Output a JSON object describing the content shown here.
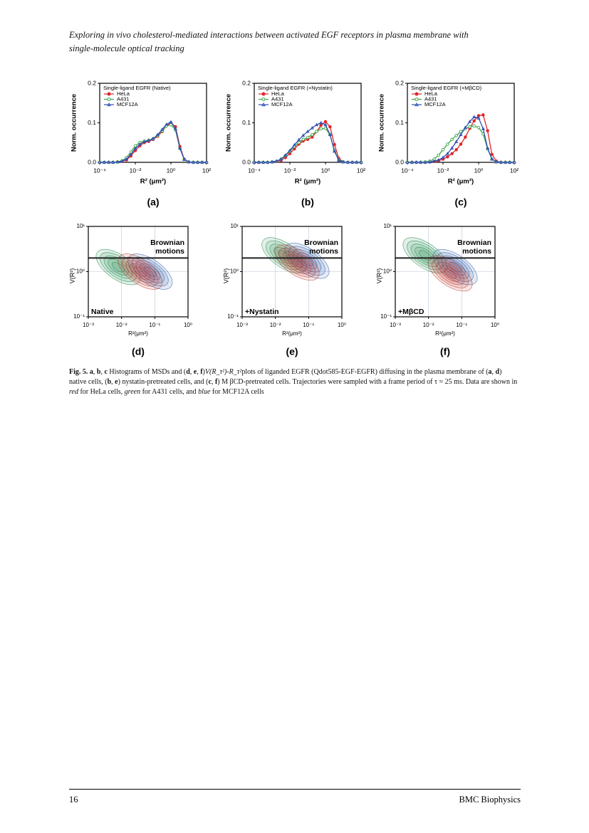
{
  "header": {
    "title_lines": [
      "Exploring in vivo cholesterol-mediated interactions between activated EGF receptors in plasma membrane with",
      "single-molecule optical tracking"
    ]
  },
  "chart_data": [
    {
      "type": "line",
      "panel_label": "(a)",
      "legend_title": "Single-ligand EGFR (Native)",
      "ylabel": "Norm. occurrence",
      "xlabel": "R² (μm²)",
      "log_x": true,
      "xlim": [
        0.0001,
        100
      ],
      "xticks": [
        {
          "value": 0.0001,
          "label": "10⁻⁴"
        },
        {
          "value": 0.01,
          "label": "10⁻²"
        },
        {
          "value": 1,
          "label": "10⁰"
        },
        {
          "value": 100,
          "label": "10²"
        }
      ],
      "ylim": [
        0,
        0.2
      ],
      "yticks": [
        {
          "value": 0,
          "label": "0.0"
        },
        0.1,
        0.2
      ],
      "x": [
        0.0001,
        0.00018,
        0.00032,
        0.00056,
        0.001,
        0.0018,
        0.0032,
        0.0056,
        0.01,
        0.018,
        0.032,
        0.056,
        0.1,
        0.18,
        0.32,
        0.56,
        1,
        1.8,
        3.2,
        5.6,
        10,
        18,
        32,
        56,
        100
      ],
      "series": [
        {
          "name": "HeLa",
          "color": "#e0262a",
          "marker": "filled-circle",
          "values": [
            0,
            0,
            0,
            0,
            0.001,
            0.002,
            0.006,
            0.016,
            0.03,
            0.042,
            0.05,
            0.053,
            0.058,
            0.066,
            0.078,
            0.092,
            0.1,
            0.09,
            0.04,
            0.008,
            0.001,
            0,
            0,
            0,
            0
          ]
        },
        {
          "name": "A431",
          "color": "#3aa646",
          "marker": "open-circle",
          "values": [
            0,
            0,
            0,
            0,
            0.001,
            0.004,
            0.012,
            0.026,
            0.042,
            0.05,
            0.054,
            0.056,
            0.06,
            0.068,
            0.08,
            0.092,
            0.095,
            0.082,
            0.035,
            0.007,
            0.001,
            0,
            0,
            0,
            0
          ]
        },
        {
          "name": "MCF12A",
          "color": "#2f4fb5",
          "marker": "triangle",
          "values": [
            0,
            0,
            0,
            0,
            0.001,
            0.003,
            0.008,
            0.02,
            0.035,
            0.046,
            0.052,
            0.055,
            0.06,
            0.07,
            0.083,
            0.096,
            0.102,
            0.085,
            0.036,
            0.007,
            0.001,
            0,
            0,
            0,
            0
          ]
        }
      ]
    },
    {
      "type": "line",
      "panel_label": "(b)",
      "legend_title": "Single-ligand EGFR (+Nystatin)",
      "ylabel": "Norm. occurrence",
      "xlabel": "R² (μm²)",
      "log_x": true,
      "xlim": [
        0.0001,
        100
      ],
      "xticks": [
        {
          "value": 0.0001,
          "label": "10⁻⁴"
        },
        {
          "value": 0.01,
          "label": "10⁻²"
        },
        {
          "value": 1,
          "label": "10⁰"
        },
        {
          "value": 100,
          "label": "10²"
        }
      ],
      "ylim": [
        0,
        0.2
      ],
      "yticks": [
        {
          "value": 0,
          "label": "0.0"
        },
        0.1,
        0.2
      ],
      "x": [
        0.0001,
        0.00018,
        0.00032,
        0.00056,
        0.001,
        0.0018,
        0.0032,
        0.0056,
        0.01,
        0.018,
        0.032,
        0.056,
        0.1,
        0.18,
        0.32,
        0.56,
        1,
        1.8,
        3.2,
        5.6,
        10,
        18,
        32,
        56,
        100
      ],
      "series": [
        {
          "name": "HeLa",
          "color": "#e0262a",
          "marker": "filled-circle",
          "values": [
            0,
            0,
            0,
            0,
            0.001,
            0.002,
            0.005,
            0.012,
            0.022,
            0.034,
            0.046,
            0.054,
            0.058,
            0.064,
            0.078,
            0.094,
            0.103,
            0.09,
            0.045,
            0.01,
            0.001,
            0,
            0,
            0,
            0
          ]
        },
        {
          "name": "A431",
          "color": "#3aa646",
          "marker": "open-circle",
          "values": [
            0,
            0,
            0,
            0,
            0.001,
            0.003,
            0.008,
            0.017,
            0.028,
            0.04,
            0.05,
            0.058,
            0.063,
            0.07,
            0.078,
            0.085,
            0.086,
            0.07,
            0.03,
            0.006,
            0.001,
            0,
            0,
            0,
            0
          ]
        },
        {
          "name": "MCF12A",
          "color": "#2f4fb5",
          "marker": "triangle",
          "values": [
            0,
            0,
            0,
            0,
            0.001,
            0.003,
            0.008,
            0.018,
            0.03,
            0.044,
            0.057,
            0.068,
            0.078,
            0.087,
            0.095,
            0.1,
            0.095,
            0.07,
            0.028,
            0.005,
            0.001,
            0,
            0,
            0,
            0
          ]
        }
      ]
    },
    {
      "type": "line",
      "panel_label": "(c)",
      "legend_title": "Single-ligand EGFR (+MβCD)",
      "ylabel": "Norm. occurrence",
      "xlabel": "R² (μm²)",
      "log_x": true,
      "xlim": [
        0.0001,
        100
      ],
      "xticks": [
        {
          "value": 0.0001,
          "label": "10⁻⁴"
        },
        {
          "value": 0.01,
          "label": "10⁻²"
        },
        {
          "value": 1,
          "label": "10⁰"
        },
        {
          "value": 100,
          "label": "10²"
        }
      ],
      "ylim": [
        0,
        0.2
      ],
      "yticks": [
        {
          "value": 0,
          "label": "0.0"
        },
        0.1,
        0.2
      ],
      "x": [
        0.0001,
        0.00018,
        0.00032,
        0.00056,
        0.001,
        0.0018,
        0.0032,
        0.0056,
        0.01,
        0.018,
        0.032,
        0.056,
        0.1,
        0.18,
        0.32,
        0.56,
        1,
        1.8,
        3.2,
        5.6,
        10,
        18,
        32,
        56,
        100
      ],
      "series": [
        {
          "name": "HeLa",
          "color": "#e0262a",
          "marker": "filled-circle",
          "values": [
            0,
            0,
            0,
            0,
            0,
            0.001,
            0.002,
            0.004,
            0.008,
            0.014,
            0.022,
            0.032,
            0.046,
            0.064,
            0.086,
            0.105,
            0.118,
            0.12,
            0.08,
            0.02,
            0.003,
            0,
            0,
            0,
            0
          ]
        },
        {
          "name": "A431",
          "color": "#3aa646",
          "marker": "open-circle",
          "values": [
            0,
            0,
            0,
            0,
            0.001,
            0.003,
            0.008,
            0.018,
            0.032,
            0.046,
            0.058,
            0.068,
            0.078,
            0.085,
            0.09,
            0.092,
            0.088,
            0.072,
            0.034,
            0.008,
            0.001,
            0,
            0,
            0,
            0
          ]
        },
        {
          "name": "MCF12A",
          "color": "#2f4fb5",
          "marker": "triangle",
          "values": [
            0,
            0,
            0,
            0,
            0,
            0.001,
            0.003,
            0.006,
            0.012,
            0.022,
            0.036,
            0.052,
            0.07,
            0.088,
            0.103,
            0.115,
            0.112,
            0.085,
            0.036,
            0.008,
            0.001,
            0,
            0,
            0,
            0
          ]
        }
      ]
    },
    {
      "type": "contour",
      "panel_label": "(d)",
      "condition": "Native",
      "annotation": [
        "Brownian",
        "motions"
      ],
      "threshold": 2,
      "ylabel": "V(R²)",
      "xlabel": "R²(μm²)",
      "log_x": true,
      "log_y": true,
      "colors": [
        "#c0392b",
        "#1f8a4c",
        "#2c5fa8"
      ],
      "xlim": [
        0.001,
        1
      ],
      "xticks": [
        {
          "value": 0.001,
          "label": "10⁻³"
        },
        {
          "value": 0.01,
          "label": "10⁻²"
        },
        {
          "value": 0.1,
          "label": "10⁻¹"
        },
        {
          "value": 1,
          "label": "10⁰"
        }
      ],
      "ylim": [
        0.1,
        10
      ],
      "yticks": [
        {
          "value": 0.1,
          "label": "10⁻¹"
        },
        {
          "value": 1,
          "label": "10⁰"
        },
        {
          "value": 10,
          "label": "10¹"
        }
      ]
    },
    {
      "type": "contour",
      "panel_label": "(e)",
      "condition": "+Nystatin",
      "annotation": [
        "Brownian",
        "motions"
      ],
      "threshold": 2,
      "ylabel": "V(R²)",
      "xlabel": "R²(μm²)",
      "log_x": true,
      "log_y": true,
      "colors": [
        "#c0392b",
        "#1f8a4c",
        "#2c5fa8"
      ],
      "xlim": [
        0.001,
        1
      ],
      "xticks": [
        {
          "value": 0.001,
          "label": "10⁻³"
        },
        {
          "value": 0.01,
          "label": "10⁻²"
        },
        {
          "value": 0.1,
          "label": "10⁻¹"
        },
        {
          "value": 1,
          "label": "10⁰"
        }
      ],
      "ylim": [
        0.1,
        10
      ],
      "yticks": [
        {
          "value": 0.1,
          "label": "10⁻¹"
        },
        {
          "value": 1,
          "label": "10⁰"
        },
        {
          "value": 10,
          "label": "10¹"
        }
      ]
    },
    {
      "type": "contour",
      "panel_label": "(f)",
      "condition": "+MβCD",
      "annotation": [
        "Brownian",
        "motions"
      ],
      "threshold": 2,
      "ylabel": "V(R²)",
      "xlabel": "R²(μm²)",
      "log_x": true,
      "log_y": true,
      "colors": [
        "#c0392b",
        "#1f8a4c",
        "#2c5fa8"
      ],
      "xlim": [
        0.001,
        1
      ],
      "xticks": [
        {
          "value": 0.001,
          "label": "10⁻³"
        },
        {
          "value": 0.01,
          "label": "10⁻²"
        },
        {
          "value": 0.1,
          "label": "10⁻¹"
        },
        {
          "value": 1,
          "label": "10⁰"
        }
      ],
      "ylim": [
        0.1,
        10
      ],
      "yticks": [
        {
          "value": 0.1,
          "label": "10⁻¹"
        },
        {
          "value": 1,
          "label": "10⁰"
        },
        {
          "value": 10,
          "label": "10¹"
        }
      ]
    }
  ],
  "caption": [
    {
      "t": "Fig. 5.",
      "s": "b"
    },
    {
      "t": " "
    },
    {
      "t": "a",
      "s": "b"
    },
    {
      "t": ", "
    },
    {
      "t": "b",
      "s": "b"
    },
    {
      "t": ", "
    },
    {
      "t": "c",
      "s": "b"
    },
    {
      "t": " Histograms of MSDs and ("
    },
    {
      "t": "d",
      "s": "b"
    },
    {
      "t": ", "
    },
    {
      "t": "e",
      "s": "b"
    },
    {
      "t": ", "
    },
    {
      "t": "f",
      "s": "b"
    },
    {
      "t": ")"
    },
    {
      "t": "V(R_τ²)-R_τ²",
      "s": "i"
    },
    {
      "t": "plots of liganded EGFR (Qdot585-EGF-EGFR) diffusing in the plasma membrane of ("
    },
    {
      "t": "a",
      "s": "b"
    },
    {
      "t": ", "
    },
    {
      "t": "d",
      "s": "b"
    },
    {
      "t": ") native cells, ("
    },
    {
      "t": "b",
      "s": "b"
    },
    {
      "t": ", "
    },
    {
      "t": "e",
      "s": "b"
    },
    {
      "t": ") nystatin-pretreated cells, and ("
    },
    {
      "t": "c",
      "s": "b"
    },
    {
      "t": ", "
    },
    {
      "t": "f",
      "s": "b"
    },
    {
      "t": ") M βCD-pretreated cells. Trajectories were sampled with a frame period of τ = 25 ms. Data are shown in "
    },
    {
      "t": "red",
      "s": "i"
    },
    {
      "t": " for HeLa cells, "
    },
    {
      "t": "green",
      "s": "i"
    },
    {
      "t": " for A431 cells, and "
    },
    {
      "t": "blue",
      "s": "i"
    },
    {
      "t": " for MCF12A cells"
    }
  ],
  "footer": {
    "page": "16",
    "journal": "BMC Biophysics"
  }
}
